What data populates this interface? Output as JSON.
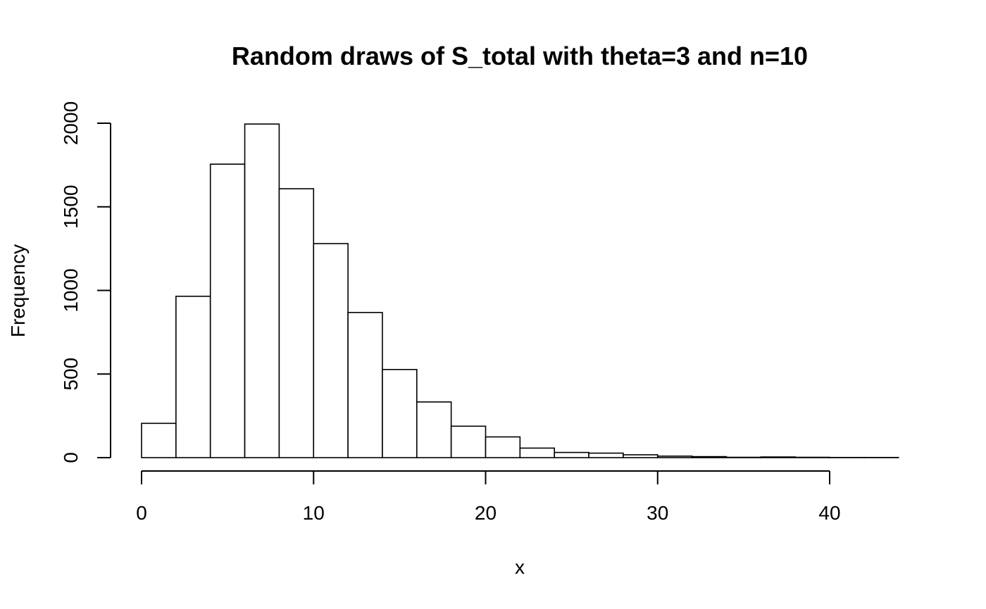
{
  "chart_data": {
    "type": "bar",
    "title": "Random draws of S_total with theta=3 and n=10",
    "xlabel": "x",
    "ylabel": "Frequency",
    "bin_edges": [
      0,
      2,
      4,
      6,
      8,
      10,
      12,
      14,
      16,
      18,
      20,
      22,
      24,
      26,
      28,
      30,
      32,
      34,
      36,
      38,
      40,
      42,
      44
    ],
    "values": [
      205,
      965,
      1755,
      1995,
      1608,
      1280,
      868,
      527,
      333,
      188,
      124,
      57,
      31,
      27,
      17,
      9,
      6,
      2,
      4,
      2,
      1,
      1
    ],
    "xlim": [
      0,
      44
    ],
    "ylim": [
      0,
      2000
    ],
    "x_ticks": [
      0,
      10,
      20,
      30,
      40
    ],
    "x_tick_labels": [
      "0",
      "10",
      "20",
      "30",
      "40"
    ],
    "y_ticks": [
      0,
      500,
      1000,
      1500,
      2000
    ],
    "y_tick_labels": [
      "0",
      "500",
      "1000",
      "1500",
      "2000"
    ],
    "colors": {
      "bar_fill": "#ffffff",
      "bar_stroke": "#000000"
    },
    "grid": false
  }
}
